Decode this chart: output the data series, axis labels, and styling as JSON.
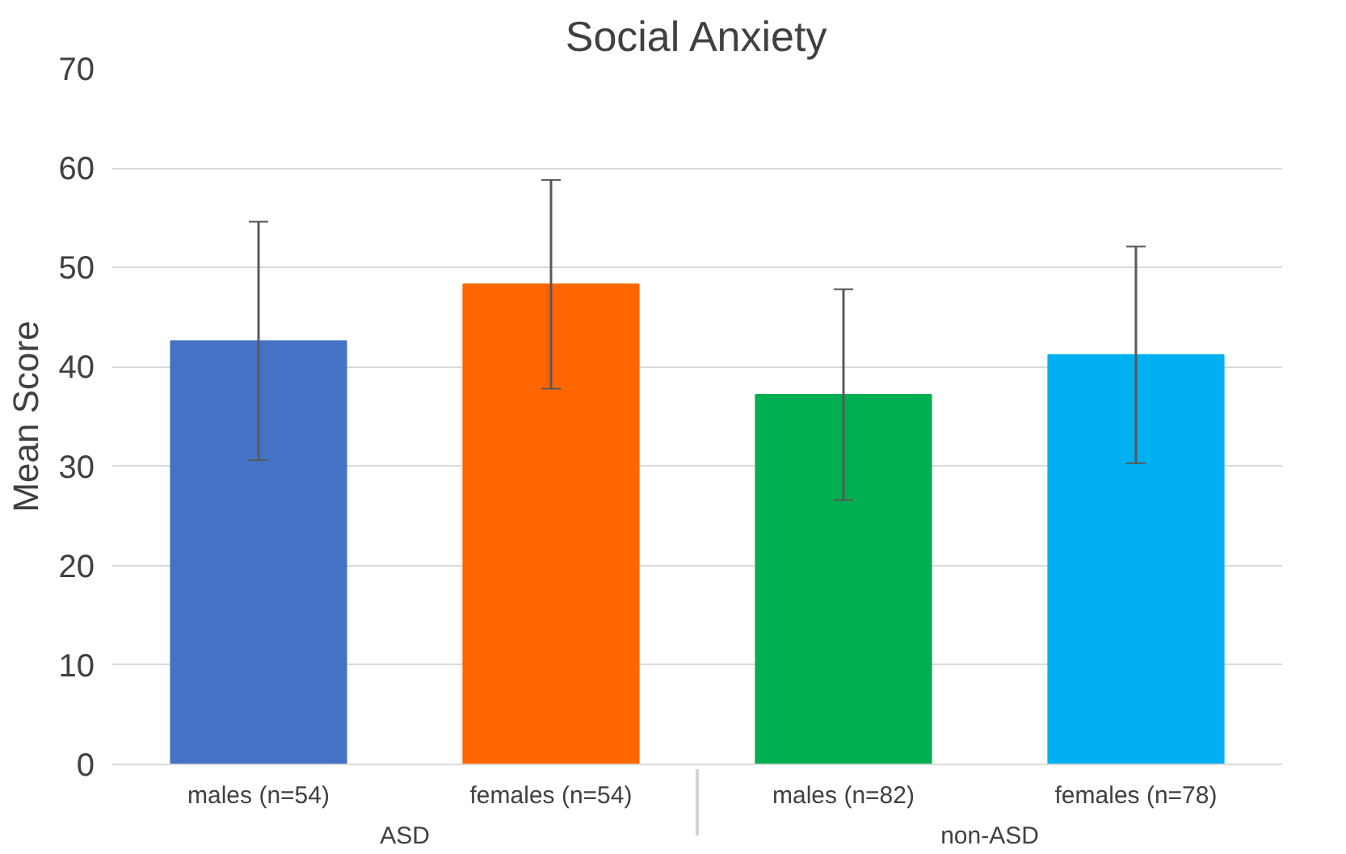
{
  "chart_data": {
    "type": "bar",
    "title": "Social Anxiety",
    "ylabel": "Mean Score",
    "categories": [
      "males (n=54)",
      "females (n=54)",
      "males (n=82)",
      "females (n=78)"
    ],
    "values": [
      42.6,
      48.3,
      37.2,
      41.2
    ],
    "colors": [
      "#4472c4",
      "#ff6600",
      "#00b050",
      "#00b0f0"
    ],
    "errors": [
      12,
      10.5,
      10.6,
      10.9
    ],
    "annotations": [
      "ASD",
      "non-ASD"
    ],
    "ylim": [
      0,
      70
    ],
    "yticks": [
      0,
      10,
      20,
      30,
      40,
      50,
      60,
      70
    ],
    "grid": "y"
  }
}
